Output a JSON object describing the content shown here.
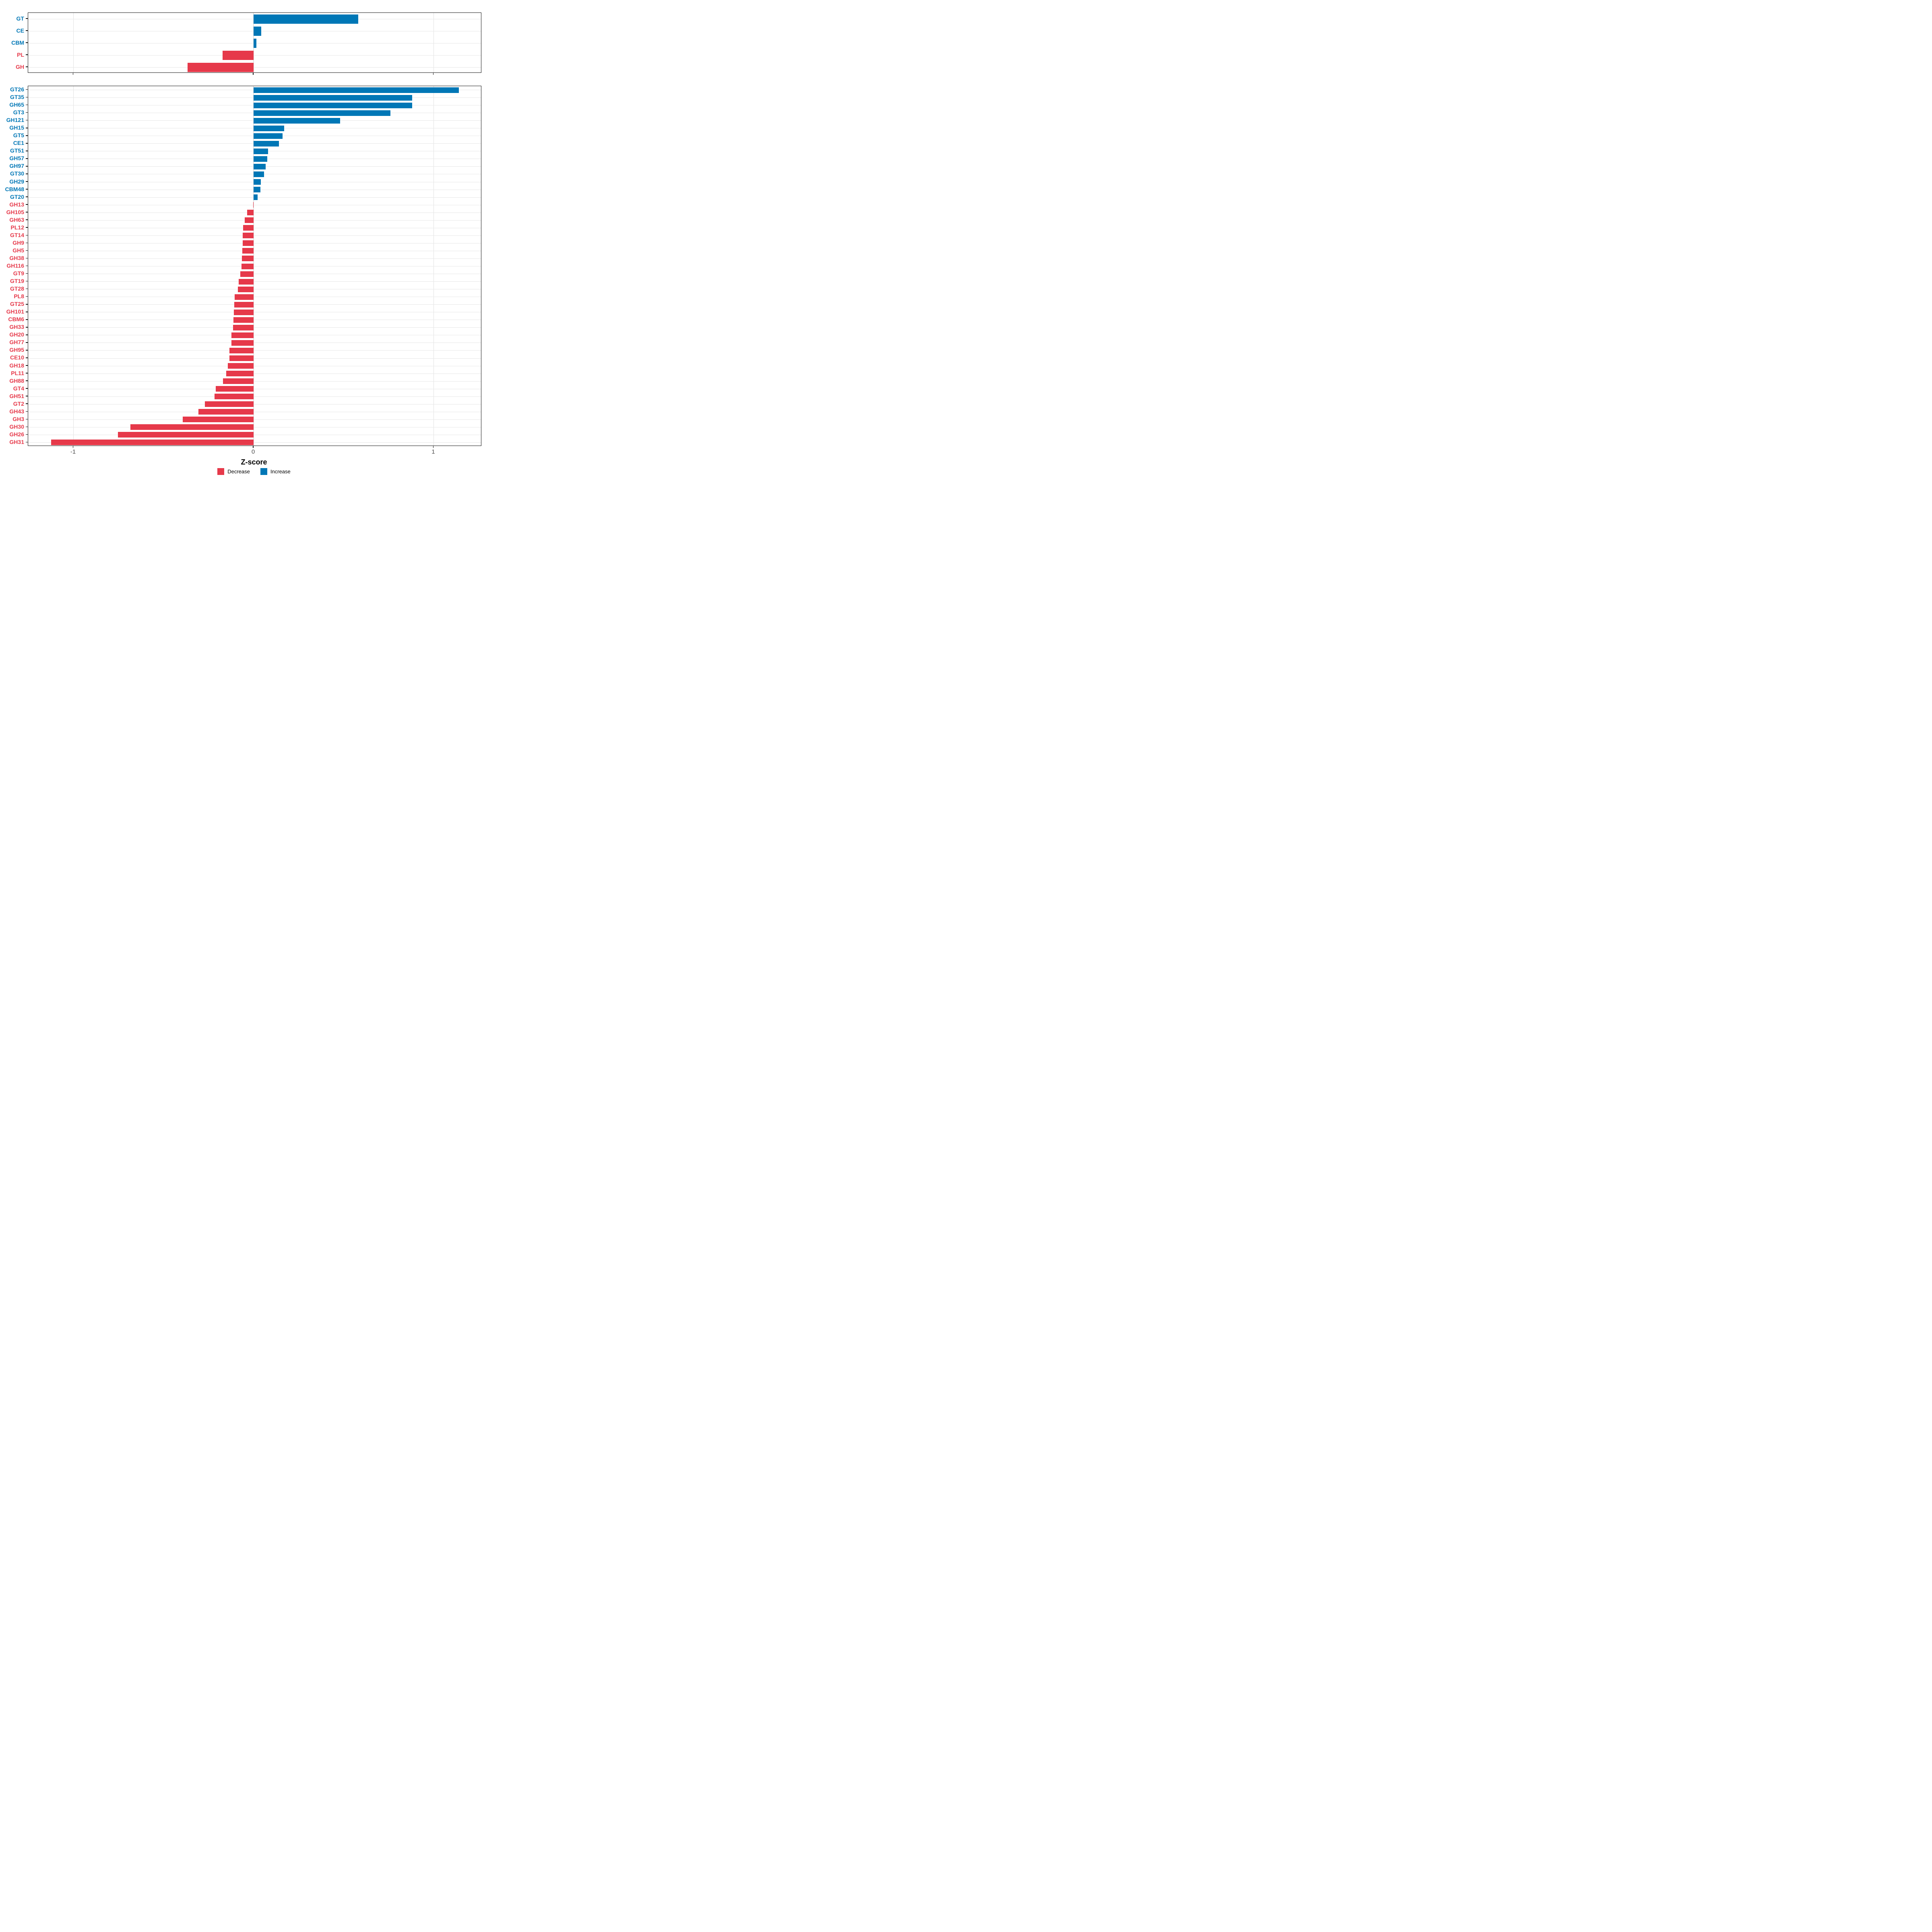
{
  "colors": {
    "increase": "#0077B6",
    "decrease": "#E6394A",
    "axis_text": "#4D4D4D",
    "grid": "#E4E4E4",
    "border": "#1A1A1A",
    "background": "#FFFFFF"
  },
  "x_axis": {
    "title": "Z-score",
    "ticks": [
      -1,
      0,
      1
    ],
    "tick_labels": [
      "-1",
      "0",
      "1"
    ],
    "range": [
      -1.2515,
      1.2605
    ]
  },
  "legend": {
    "items": [
      {
        "label": "Decrease",
        "color": "#E6394A"
      },
      {
        "label": "Increase",
        "color": "#0077B6"
      }
    ]
  },
  "chart_data": [
    {
      "type": "bar",
      "orientation": "horizontal",
      "panel": "top",
      "title": "",
      "xlabel": "Z-score",
      "xlim": [
        -1.2515,
        1.2605
      ],
      "xticks": [
        -1,
        0,
        1
      ],
      "grid": true,
      "legend_position": "bottom",
      "categories": [
        "GT",
        "CE",
        "CBM",
        "PL",
        "GH"
      ],
      "values": [
        0.58,
        0.042,
        0.016,
        -0.171,
        -0.366
      ],
      "series_note": "positive = Increase (blue), negative = Decrease (red)"
    },
    {
      "type": "bar",
      "orientation": "horizontal",
      "panel": "bottom",
      "title": "",
      "xlabel": "Z-score",
      "xlim": [
        -1.2515,
        1.2605
      ],
      "xticks": [
        -1,
        0,
        1
      ],
      "grid": true,
      "legend_position": "bottom",
      "categories": [
        "GT26",
        "GT35",
        "GH65",
        "GT3",
        "GH121",
        "GH15",
        "GT5",
        "CE1",
        "GT51",
        "GH57",
        "GH97",
        "GT30",
        "GH29",
        "CBM48",
        "GT20",
        "GH13",
        "GH105",
        "GH63",
        "PL12",
        "GT14",
        "GH9",
        "GH5",
        "GH38",
        "GH116",
        "GT9",
        "GT19",
        "GT28",
        "PL8",
        "GT25",
        "GH101",
        "CBM6",
        "GH33",
        "GH20",
        "GH77",
        "GH95",
        "CE10",
        "GH18",
        "PL11",
        "GH88",
        "GT4",
        "GH51",
        "GT2",
        "GH43",
        "GH3",
        "GH30",
        "GH26",
        "GH31"
      ],
      "values": [
        1.14,
        0.88,
        0.88,
        0.76,
        0.48,
        0.17,
        0.16,
        0.14,
        0.08,
        0.075,
        0.067,
        0.058,
        0.041,
        0.039,
        0.022,
        -0.002,
        -0.036,
        -0.049,
        -0.058,
        -0.06,
        -0.061,
        -0.062,
        -0.064,
        -0.067,
        -0.073,
        -0.082,
        -0.088,
        -0.106,
        -0.108,
        -0.11,
        -0.111,
        -0.113,
        -0.123,
        -0.124,
        -0.134,
        -0.135,
        -0.143,
        -0.153,
        -0.17,
        -0.21,
        -0.217,
        -0.27,
        -0.307,
        -0.394,
        -0.684,
        -0.753,
        -1.125
      ],
      "series_note": "positive = Increase (blue), negative = Decrease (red)"
    }
  ]
}
